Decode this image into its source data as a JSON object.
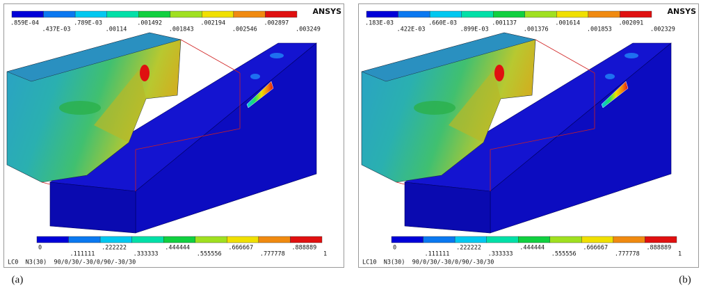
{
  "panels": [
    {
      "logo": "ANSYS",
      "result_legend": [
        ".859E-04",
        ".437E-03",
        ".789E-03",
        ".00114",
        ".001492",
        ".001843",
        ".002194",
        ".002546",
        ".002897",
        ".003249"
      ],
      "layer_legend": [
        "0",
        ".111111",
        ".222222",
        ".333333",
        ".444444",
        ".555556",
        ".666667",
        ".777778",
        ".888889",
        "1"
      ],
      "footer": "LC0  N3(30)  90/0/30/-30/0/90/-30/30",
      "caption": "(a)"
    },
    {
      "logo": "ANSYS",
      "result_legend": [
        ".183E-03",
        ".422E-03",
        ".660E-03",
        ".899E-03",
        ".001137",
        ".001376",
        ".001614",
        ".001853",
        ".002091",
        ".002329"
      ],
      "layer_legend": [
        "0",
        ".111111",
        ".222222",
        ".333333",
        ".444444",
        ".555556",
        ".666667",
        ".777778",
        ".888889",
        "1"
      ],
      "footer": "LC10  N3(30)  90/0/30/-30/0/90/-30/30",
      "caption": "(b)"
    }
  ]
}
